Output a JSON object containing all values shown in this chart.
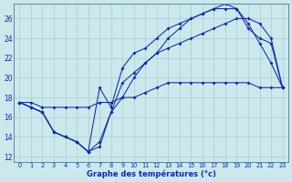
{
  "xlabel": "Graphe des températures (°c)",
  "bg_color": "#cce8ec",
  "line_color": "#1428a8",
  "grid_color": "#a8ccd0",
  "xlim": [
    -0.5,
    23.5
  ],
  "ylim": [
    11.5,
    27.5
  ],
  "yticks": [
    12,
    14,
    16,
    18,
    20,
    22,
    24,
    26
  ],
  "xticks": [
    0,
    1,
    2,
    3,
    4,
    5,
    6,
    7,
    8,
    9,
    10,
    11,
    12,
    13,
    14,
    15,
    16,
    17,
    18,
    19,
    20,
    21,
    22,
    23
  ],
  "lines": [
    {
      "x": [
        0,
        1,
        2,
        3,
        4,
        5,
        6,
        7,
        8,
        9,
        10,
        11,
        12,
        13,
        14,
        15,
        16,
        17,
        18,
        19,
        20,
        21,
        22,
        23
      ],
      "y": [
        17.5,
        17.5,
        17.0,
        17.0,
        17.0,
        17.0,
        17.0,
        17.5,
        17.5,
        18.0,
        18.0,
        18.5,
        19.0,
        19.5,
        19.5,
        19.5,
        19.5,
        19.5,
        19.5,
        19.5,
        19.5,
        19.0,
        19.0,
        19.0
      ]
    },
    {
      "x": [
        0,
        1,
        2,
        3,
        4,
        5,
        6,
        7,
        8,
        9,
        10,
        11,
        12,
        13,
        14,
        15,
        16,
        17,
        18,
        19,
        20,
        21,
        22,
        23
      ],
      "y": [
        17.5,
        17.0,
        16.5,
        14.5,
        14.0,
        13.5,
        12.5,
        13.5,
        16.5,
        19.5,
        20.5,
        21.5,
        22.5,
        23.0,
        23.5,
        24.0,
        24.5,
        25.0,
        25.5,
        26.0,
        26.0,
        25.5,
        24.0,
        19.0
      ]
    },
    {
      "x": [
        0,
        1,
        2,
        3,
        4,
        5,
        6,
        7,
        8,
        9,
        10,
        11,
        12,
        13,
        14,
        15,
        16,
        17,
        18,
        19,
        20,
        21,
        22,
        23
      ],
      "y": [
        17.5,
        17.0,
        16.5,
        14.5,
        14.0,
        13.5,
        12.5,
        13.0,
        16.5,
        18.0,
        20.0,
        21.5,
        22.5,
        24.0,
        25.0,
        26.0,
        26.5,
        27.0,
        27.0,
        27.0,
        25.5,
        23.5,
        21.5,
        19.0
      ]
    },
    {
      "x": [
        0,
        1,
        2,
        3,
        4,
        5,
        6,
        7,
        8,
        9,
        10,
        11,
        12,
        13,
        14,
        15,
        16,
        17,
        18,
        19,
        20,
        21,
        22,
        23
      ],
      "y": [
        17.5,
        17.0,
        16.5,
        14.5,
        14.0,
        13.5,
        12.5,
        19.0,
        17.0,
        21.0,
        22.5,
        23.0,
        24.0,
        25.0,
        25.5,
        26.0,
        26.5,
        27.0,
        27.5,
        27.0,
        25.0,
        24.0,
        23.5,
        19.0
      ]
    }
  ]
}
